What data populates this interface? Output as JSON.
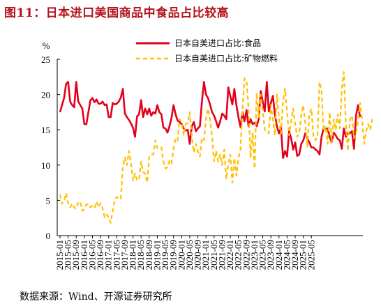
{
  "title": "图11：日本进口美国商品中食品占比较高",
  "source": "数据来源：Wind、开源证券研究所",
  "chart_data": {
    "type": "line",
    "ylabel": "%",
    "ylim": [
      0,
      25
    ],
    "yticks": [
      0,
      5,
      10,
      15,
      20,
      25
    ],
    "xtick_labels": [
      "2015-01",
      "2015-05",
      "2015-09",
      "2016-01",
      "2016-05",
      "2016-09",
      "2017-01",
      "2017-05",
      "2017-09",
      "2018-01",
      "2018-05",
      "2018-09",
      "2019-01",
      "2019-05",
      "2019-09",
      "2020-01",
      "2020-05",
      "2020-09",
      "2021-01",
      "2021-05",
      "2021-09",
      "2022-01",
      "2022-05",
      "2022-09",
      "2023-01",
      "2023-05",
      "2023-09",
      "2024-01",
      "2024-05",
      "2024-09",
      "2025-01",
      "2025-05"
    ],
    "legend_position": "top-right",
    "series": [
      {
        "name": "日本自美进口占比:食品",
        "color": "#e3001b",
        "style": "solid",
        "values": [
          17.5,
          18.5,
          19.5,
          21.5,
          21.8,
          19.0,
          18.5,
          18.2,
          21.8,
          19.0,
          18.5,
          18.0,
          15.8,
          15.8,
          17.5,
          19.2,
          19.5,
          18.9,
          19.3,
          18.7,
          18.7,
          19.0,
          18.5,
          18.6,
          16.8,
          16.8,
          18.8,
          18.6,
          18.7,
          19.0,
          19.6,
          20.8,
          17.3,
          16.8,
          16.4,
          15.9,
          15.3,
          14.0,
          16.9,
          17.2,
          19.2,
          16.8,
          18.0,
          17.2,
          18.0,
          17.0,
          17.5,
          17.3,
          18.5,
          17.5,
          17.2,
          15.3,
          15.2,
          14.6,
          15.5,
          16.7,
          18.5,
          17.2,
          16.3,
          16.1,
          15.8,
          15.2,
          14.9,
          15.0,
          13.0,
          15.5,
          16.1,
          14.8,
          15.2,
          15.5,
          19.0,
          21.8,
          20.0,
          19.5,
          18.6,
          17.5,
          17.0,
          16.2,
          15.3,
          16.2,
          17.3,
          17.0,
          16.5,
          21.0,
          19.8,
          18.6,
          20.8,
          18.5,
          16.8,
          15.4,
          17.5,
          16.2,
          17.8,
          15.5,
          16.5,
          15.8,
          16.0,
          15.5,
          16.5,
          20.5,
          19.0,
          17.6,
          21.8,
          17.6,
          18.8,
          19.8,
          17.2,
          15.5,
          14.5,
          15.3,
          11.0,
          12.0,
          11.2,
          14.8,
          13.8,
          12.2,
          13.2,
          11.3,
          11.5,
          13.0,
          13.5,
          14.5,
          13.8,
          13.2,
          12.5,
          12.5,
          12.2,
          12.0,
          11.5,
          14.0,
          15.2,
          15.0,
          15.2,
          14.0,
          13.2,
          14.6,
          14.2,
          13.7,
          13.5,
          12.3,
          15.2,
          14.0,
          14.5,
          14.5,
          14.8,
          12.3,
          17.0,
          18.5,
          16.8
        ]
      },
      {
        "name": "日本自美进口占比:矿物燃料",
        "color": "#ffc000",
        "style": "dashed",
        "values": [
          5.8,
          4.5,
          5.0,
          6.0,
          4.6,
          4.0,
          4.5,
          4.0,
          3.8,
          4.8,
          4.7,
          3.5,
          3.8,
          4.4,
          4.5,
          4.0,
          4.2,
          3.9,
          4.8,
          4.0,
          4.6,
          3.9,
          2.6,
          3.0,
          2.6,
          1.8,
          3.5,
          5.0,
          5.5,
          5.2,
          5.2,
          9.7,
          11.1,
          10.0,
          12.0,
          10.2,
          7.8,
          8.8,
          7.8,
          8.0,
          10.5,
          9.0,
          8.8,
          7.5,
          11.2,
          11.5,
          11.5,
          13.5,
          12.4,
          12.3,
          12.5,
          10.5,
          9.5,
          9.7,
          10.6,
          10.2,
          12.4,
          13.8,
          13.5,
          16.5,
          16.0,
          14.2,
          15.8,
          16.0,
          17.5,
          14.0,
          11.8,
          13.0,
          12.0,
          11.2,
          13.8,
          13.5,
          16.5,
          18.0,
          16.5,
          14.0,
          10.5,
          12.0,
          10.5,
          11.5,
          10.0,
          12.2,
          8.0,
          10.2,
          11.5,
          7.5,
          11.0,
          8.5,
          11.0,
          12.2,
          18.0,
          22.3,
          22.0,
          18.0,
          11.0,
          14.6,
          9.5,
          20.2,
          16.8,
          20.0,
          17.5,
          15.0,
          14.7,
          14.5,
          18.5,
          16.5,
          14.2,
          20.0,
          16.5,
          14.5,
          19.0,
          20.8,
          17.5,
          14.2,
          16.2,
          18.0,
          15.8,
          14.0,
          14.6,
          17.0,
          18.5,
          15.8,
          12.5,
          17.2,
          18.0,
          14.0,
          13.5,
          14.0,
          21.8,
          20.5,
          14.8,
          15.5,
          13.0,
          17.5,
          13.2,
          16.5,
          15.0,
          17.2,
          15.2,
          20.8,
          23.2,
          15.8,
          12.0,
          16.5,
          17.0,
          13.8,
          14.5,
          16.2,
          18.8,
          16.5,
          13.0,
          14.8,
          15.8,
          15.0,
          16.5
        ]
      }
    ]
  }
}
